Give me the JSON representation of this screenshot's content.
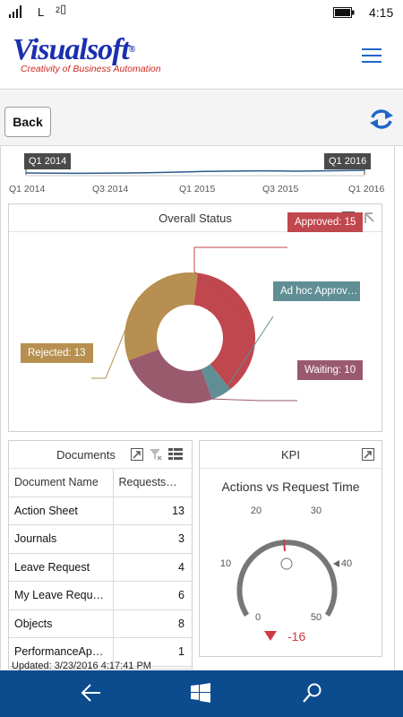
{
  "statusbar": {
    "network": "L",
    "sim": "2",
    "time": "4:15"
  },
  "header": {
    "logo_text": "Visualsoft",
    "logo_tagline": "Creativity of Business Automation"
  },
  "toolbar": {
    "back_label": "Back"
  },
  "range": {
    "selected_start": "Q1 2014",
    "selected_end": "Q1 2016",
    "ticks": [
      "Q1 2014",
      "Q3 2014",
      "Q1 2015",
      "Q3 2015",
      "Q1 2016"
    ]
  },
  "overall_status": {
    "title": "Overall Status",
    "callouts": {
      "approved": "Approved: 15",
      "adhoc": "Ad hoc Approv…",
      "rejected": "Rejected: 13",
      "waiting": "Waiting: 10"
    }
  },
  "chart_data": {
    "type": "pie",
    "title": "Overall Status",
    "donut": true,
    "slices": [
      {
        "label": "Approved",
        "value": 15,
        "color": "#c0474e"
      },
      {
        "label": "Ad hoc Approv…",
        "value": 2,
        "color": "#5f8f94"
      },
      {
        "label": "Waiting",
        "value": 10,
        "color": "#9a5a6e"
      },
      {
        "label": "Rejected",
        "value": 13,
        "color": "#b78f50"
      }
    ]
  },
  "documents": {
    "title": "Documents",
    "columns": [
      "Document Name",
      "Requests…"
    ],
    "rows": [
      {
        "name": "Action Sheet",
        "requests": "13"
      },
      {
        "name": "Journals",
        "requests": "3"
      },
      {
        "name": "Leave Request",
        "requests": "4"
      },
      {
        "name": "My Leave Requ…",
        "requests": "6"
      },
      {
        "name": "Objects",
        "requests": "8"
      },
      {
        "name": "PerformanceAp…",
        "requests": "1"
      }
    ]
  },
  "kpi": {
    "title": "KPI",
    "gauge_title": "Actions vs Request Time",
    "ticks": [
      "0",
      "10",
      "20",
      "30",
      "40",
      "50"
    ],
    "value": "-16",
    "trend": "down"
  },
  "footer": {
    "updated": "Updated: 3/23/2016 4:17:41 PM"
  },
  "colors": {
    "brand_blue": "#1a2fb0",
    "accent_blue": "#1e66c8",
    "bottom_bar": "#0b4b8e",
    "negative": "#d03a45"
  }
}
